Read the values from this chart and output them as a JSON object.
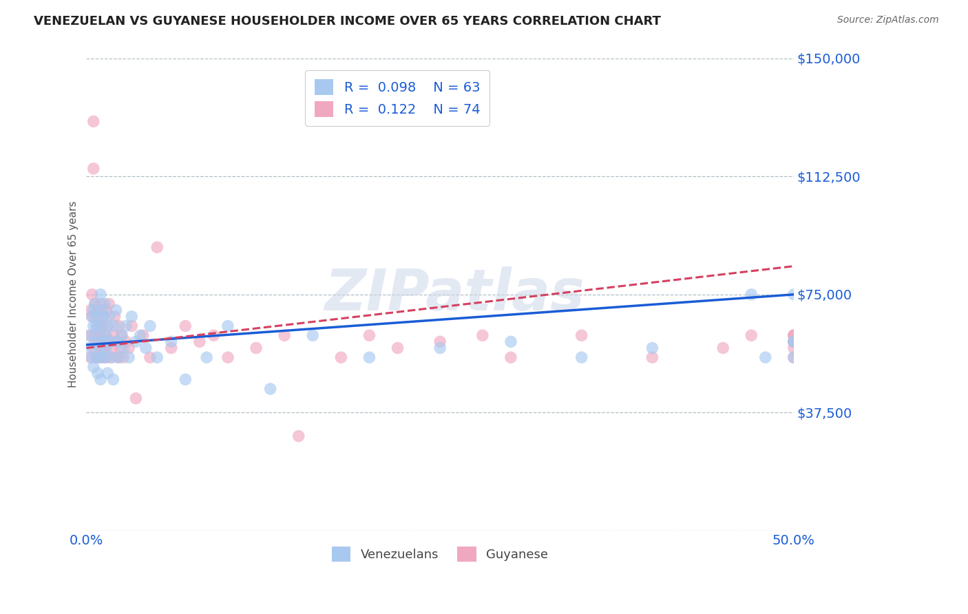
{
  "title": "VENEZUELAN VS GUYANESE HOUSEHOLDER INCOME OVER 65 YEARS CORRELATION CHART",
  "source": "Source: ZipAtlas.com",
  "ylabel": "Householder Income Over 65 years",
  "xlim": [
    0.0,
    50.0
  ],
  "ylim": [
    0,
    150000
  ],
  "yticks": [
    0,
    37500,
    75000,
    112500,
    150000
  ],
  "ytick_labels": [
    "",
    "$37,500",
    "$75,000",
    "$112,500",
    "$150,000"
  ],
  "watermark": "ZIPatlas",
  "venezuelan_R": 0.098,
  "venezuelan_N": 63,
  "guyanese_R": 0.122,
  "guyanese_N": 74,
  "scatter_color_venezuelan": "#a8c8f0",
  "scatter_color_guyanese": "#f0a8c0",
  "line_color_venezuelan": "#1a5cd6",
  "line_color_guyanese": "#d44060",
  "ven_trendline_x0": 0.0,
  "ven_trendline_y0": 59000,
  "ven_trendline_x1": 50.0,
  "ven_trendline_y1": 75000,
  "guy_trendline_x0": 0.0,
  "guy_trendline_y0": 58000,
  "guy_trendline_x1": 50.0,
  "guy_trendline_y1": 84000,
  "venezuelan_x": [
    0.2,
    0.3,
    0.4,
    0.4,
    0.5,
    0.5,
    0.5,
    0.6,
    0.6,
    0.7,
    0.7,
    0.8,
    0.8,
    0.9,
    0.9,
    1.0,
    1.0,
    1.0,
    1.1,
    1.1,
    1.2,
    1.2,
    1.3,
    1.3,
    1.4,
    1.4,
    1.5,
    1.5,
    1.6,
    1.7,
    1.8,
    1.9,
    2.0,
    2.1,
    2.2,
    2.3,
    2.5,
    2.6,
    2.8,
    3.0,
    3.2,
    3.5,
    3.8,
    4.2,
    4.5,
    5.0,
    6.0,
    7.0,
    8.5,
    10.0,
    13.0,
    16.0,
    20.0,
    25.0,
    30.0,
    35.0,
    40.0,
    47.0,
    48.0,
    50.0,
    50.0,
    50.0,
    50.0
  ],
  "venezuelan_y": [
    58000,
    62000,
    55000,
    68000,
    65000,
    52000,
    70000,
    60000,
    72000,
    55000,
    65000,
    50000,
    68000,
    58000,
    62000,
    48000,
    65000,
    75000,
    55000,
    70000,
    60000,
    68000,
    72000,
    55000,
    62000,
    58000,
    50000,
    65000,
    68000,
    60000,
    55000,
    48000,
    65000,
    70000,
    60000,
    55000,
    62000,
    58000,
    65000,
    55000,
    68000,
    60000,
    62000,
    58000,
    65000,
    55000,
    60000,
    48000,
    55000,
    65000,
    45000,
    62000,
    55000,
    58000,
    60000,
    55000,
    58000,
    75000,
    55000,
    60000,
    60000,
    55000,
    75000
  ],
  "guyanese_x": [
    0.2,
    0.3,
    0.3,
    0.4,
    0.4,
    0.5,
    0.5,
    0.5,
    0.6,
    0.6,
    0.7,
    0.7,
    0.8,
    0.8,
    0.9,
    0.9,
    1.0,
    1.0,
    1.0,
    1.1,
    1.1,
    1.2,
    1.2,
    1.3,
    1.3,
    1.4,
    1.4,
    1.5,
    1.5,
    1.6,
    1.7,
    1.8,
    1.9,
    2.0,
    2.1,
    2.2,
    2.3,
    2.4,
    2.5,
    2.6,
    2.8,
    3.0,
    3.2,
    3.5,
    4.0,
    4.5,
    5.0,
    6.0,
    7.0,
    8.0,
    9.0,
    10.0,
    12.0,
    14.0,
    15.0,
    18.0,
    20.0,
    22.0,
    25.0,
    28.0,
    30.0,
    35.0,
    40.0,
    45.0,
    47.0,
    50.0,
    50.0,
    50.0,
    50.0,
    50.0,
    50.0,
    50.0,
    50.0,
    50.0
  ],
  "guyanese_y": [
    62000,
    55000,
    70000,
    68000,
    75000,
    58000,
    130000,
    115000,
    62000,
    72000,
    55000,
    68000,
    60000,
    65000,
    55000,
    70000,
    58000,
    62000,
    72000,
    55000,
    65000,
    58000,
    68000,
    62000,
    58000,
    55000,
    70000,
    65000,
    60000,
    72000,
    55000,
    58000,
    62000,
    68000,
    60000,
    55000,
    65000,
    58000,
    62000,
    55000,
    60000,
    58000,
    65000,
    42000,
    62000,
    55000,
    90000,
    58000,
    65000,
    60000,
    62000,
    55000,
    58000,
    62000,
    30000,
    55000,
    62000,
    58000,
    60000,
    62000,
    55000,
    62000,
    55000,
    58000,
    62000,
    60000,
    62000,
    60000,
    62000,
    60000,
    55000,
    58000,
    60000,
    62000
  ]
}
